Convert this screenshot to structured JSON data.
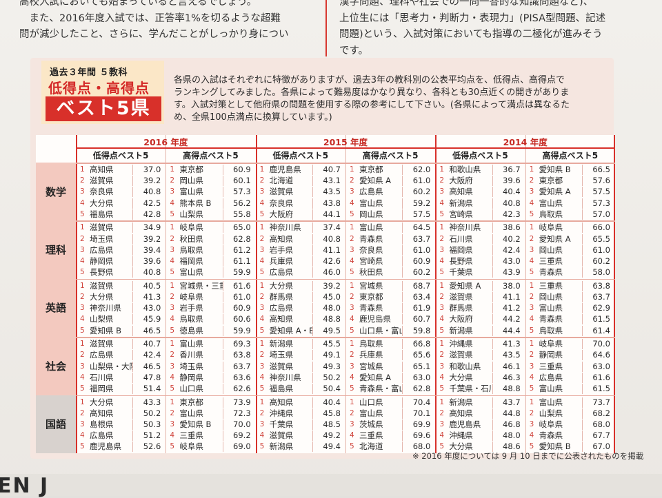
{
  "article": {
    "left": [
      "高校入試においても始まっていると言えるでしょう。",
      "　また、2016年度入試では、正答率1%を切るような超難",
      "問が減少したこと、さらに、学んだことがしっかり身につい"
    ],
    "right": [
      "漢字問題、理科や社会での一問一答的な知識問題など)、",
      "上位生には「思考力・判断力・表現力」(PISA型問題、記述",
      "問題)という、入試対策においても指導の二極化が進みそう",
      "です。"
    ]
  },
  "feature": {
    "subtitle": "過去３年間 ５教科",
    "title_line1": "低得点・高得点",
    "title_line2": "ベスト5県",
    "intro": [
      "各県の入試はそれぞれに特徴がありますが、過去3年の教科別の公表平均点を、低得点、高得点で",
      "ランキングしてみました。各県によって難易度はかなり異なり、各科とも30点近くの開きがありま",
      "す。入試対策として他府県の問題を使用する際の参考にして下さい。(各県によって満点は異なるた",
      "め、全県100点満点に換算しています。)"
    ]
  },
  "table": {
    "years": [
      "2016 年度",
      "2015 年度",
      "2014 年度"
    ],
    "low_label": "低得点ベスト5",
    "high_label": "高得点ベスト5",
    "subjects": [
      {
        "name": "数学",
        "cols": [
          [
            [
              "1",
              "高知県",
              "37.0"
            ],
            [
              "2",
              "滋賀県",
              "39.2"
            ],
            [
              "3",
              "奈良県",
              "40.8"
            ],
            [
              "4",
              "大分県",
              "42.5"
            ],
            [
              "5",
              "福島県",
              "42.8"
            ]
          ],
          [
            [
              "1",
              "東京都",
              "60.9"
            ],
            [
              "2",
              "岡山県",
              "60.1"
            ],
            [
              "3",
              "富山県",
              "57.3"
            ],
            [
              "4",
              "熊本県 B",
              "56.2"
            ],
            [
              "5",
              "山梨県",
              "55.8"
            ]
          ],
          [
            [
              "1",
              "鹿児島県",
              "40.7"
            ],
            [
              "2",
              "北海道",
              "43.1"
            ],
            [
              "3",
              "滋賀県",
              "43.5"
            ],
            [
              "4",
              "奈良県",
              "43.8"
            ],
            [
              "5",
              "大阪府",
              "44.1"
            ]
          ],
          [
            [
              "1",
              "東京都",
              "62.0"
            ],
            [
              "2",
              "愛知県 A",
              "61.0"
            ],
            [
              "3",
              "広島県",
              "60.2"
            ],
            [
              "4",
              "富山県",
              "59.2"
            ],
            [
              "5",
              "岡山県",
              "57.5"
            ]
          ],
          [
            [
              "1",
              "和歌山県",
              "36.7"
            ],
            [
              "2",
              "大阪府",
              "39.6"
            ],
            [
              "3",
              "高知県",
              "40.4"
            ],
            [
              "4",
              "新潟県",
              "40.8"
            ],
            [
              "5",
              "宮崎県",
              "42.3"
            ]
          ],
          [
            [
              "1",
              "愛知県 B",
              "66.5"
            ],
            [
              "2",
              "東京都",
              "57.6"
            ],
            [
              "3",
              "愛知県 A",
              "57.5"
            ],
            [
              "4",
              "富山県",
              "57.3"
            ],
            [
              "5",
              "鳥取県",
              "57.0"
            ]
          ]
        ]
      },
      {
        "name": "理科",
        "cols": [
          [
            [
              "1",
              "滋賀県",
              "34.9"
            ],
            [
              "2",
              "埼玉県",
              "39.2"
            ],
            [
              "3",
              "広島県",
              "39.4"
            ],
            [
              "4",
              "静岡県",
              "39.6"
            ],
            [
              "5",
              "長野県",
              "40.8"
            ]
          ],
          [
            [
              "1",
              "岐阜県",
              "65.0"
            ],
            [
              "2",
              "秋田県",
              "62.8"
            ],
            [
              "3",
              "鳥取県",
              "61.2"
            ],
            [
              "4",
              "福岡県",
              "61.1"
            ],
            [
              "5",
              "富山県",
              "59.9"
            ]
          ],
          [
            [
              "1",
              "神奈川県",
              "37.4"
            ],
            [
              "2",
              "高知県",
              "40.8"
            ],
            [
              "3",
              "岩手県",
              "41.1"
            ],
            [
              "4",
              "兵庫県",
              "42.6"
            ],
            [
              "5",
              "広島県",
              "46.0"
            ]
          ],
          [
            [
              "1",
              "富山県",
              "64.5"
            ],
            [
              "2",
              "青森県",
              "63.7"
            ],
            [
              "3",
              "奈良県",
              "61.0"
            ],
            [
              "4",
              "宮崎県",
              "60.9"
            ],
            [
              "5",
              "秋田県",
              "60.2"
            ]
          ],
          [
            [
              "1",
              "神奈川県",
              "38.6"
            ],
            [
              "2",
              "石川県",
              "40.2"
            ],
            [
              "3",
              "福岡県",
              "42.4"
            ],
            [
              "4",
              "長野県",
              "43.0"
            ],
            [
              "5",
              "千葉県",
              "43.9"
            ]
          ],
          [
            [
              "1",
              "岐阜県",
              "66.0"
            ],
            [
              "2",
              "愛知県 A",
              "65.5"
            ],
            [
              "3",
              "岡山県",
              "61.0"
            ],
            [
              "4",
              "三重県",
              "60.2"
            ],
            [
              "5",
              "青森県",
              "58.0"
            ]
          ]
        ]
      },
      {
        "name": "英語",
        "cols": [
          [
            [
              "1",
              "滋賀県",
              "40.5"
            ],
            [
              "2",
              "大分県",
              "41.3"
            ],
            [
              "3",
              "神奈川県",
              "43.0"
            ],
            [
              "4",
              "山梨県",
              "45.9"
            ],
            [
              "5",
              "愛知県 B",
              "46.5"
            ]
          ],
          [
            [
              "1",
              "宮城県・三重県",
              "61.6"
            ],
            [
              "2",
              "岐阜県",
              "61.0"
            ],
            [
              "3",
              "岩手県",
              "60.9"
            ],
            [
              "4",
              "鳥取県",
              "60.6"
            ],
            [
              "5",
              "徳島県",
              "59.9"
            ]
          ],
          [
            [
              "1",
              "大分県",
              "39.2"
            ],
            [
              "2",
              "群馬県",
              "45.0"
            ],
            [
              "3",
              "広島県",
              "48.0"
            ],
            [
              "4",
              "高知県",
              "48.8"
            ],
            [
              "5",
              "愛知県 A・B",
              "49.5"
            ]
          ],
          [
            [
              "1",
              "宮城県",
              "68.7"
            ],
            [
              "2",
              "東京都",
              "63.4"
            ],
            [
              "3",
              "青森県",
              "61.9"
            ],
            [
              "4",
              "鹿児島県",
              "60.7"
            ],
            [
              "5",
              "山口県・富山県",
              "59.8"
            ]
          ],
          [
            [
              "1",
              "愛知県 A",
              "38.0"
            ],
            [
              "2",
              "滋賀県",
              "41.1"
            ],
            [
              "3",
              "群馬県",
              "41.2"
            ],
            [
              "4",
              "大阪府",
              "44.2"
            ],
            [
              "5",
              "新潟県",
              "44.4"
            ]
          ],
          [
            [
              "1",
              "三重県",
              "63.8"
            ],
            [
              "2",
              "岡山県",
              "63.7"
            ],
            [
              "3",
              "富山県",
              "62.9"
            ],
            [
              "4",
              "青森県",
              "61.5"
            ],
            [
              "5",
              "鳥取県",
              "61.4"
            ]
          ]
        ]
      },
      {
        "name": "社会",
        "cols": [
          [
            [
              "1",
              "滋賀県",
              "40.7"
            ],
            [
              "2",
              "広島県",
              "42.4"
            ],
            [
              "3",
              "山梨県・大阪府",
              "46.5"
            ],
            [
              "4",
              "石川県",
              "47.8"
            ],
            [
              "5",
              "福岡県",
              "51.4"
            ]
          ],
          [
            [
              "1",
              "富山県",
              "69.3"
            ],
            [
              "2",
              "香川県",
              "63.8"
            ],
            [
              "3",
              "埼玉県",
              "63.7"
            ],
            [
              "4",
              "静岡県",
              "63.6"
            ],
            [
              "5",
              "山口県",
              "62.6"
            ]
          ],
          [
            [
              "1",
              "新潟県",
              "45.5"
            ],
            [
              "2",
              "埼玉県",
              "49.1"
            ],
            [
              "3",
              "滋賀県",
              "49.3"
            ],
            [
              "4",
              "神奈川県",
              "50.2"
            ],
            [
              "5",
              "福島県",
              "50.4"
            ]
          ],
          [
            [
              "1",
              "鳥取県",
              "66.8"
            ],
            [
              "2",
              "兵庫県",
              "65.6"
            ],
            [
              "3",
              "宮城県",
              "65.1"
            ],
            [
              "4",
              "愛知県 A",
              "63.0"
            ],
            [
              "5",
              "青森県・富山県",
              "62.8"
            ]
          ],
          [
            [
              "1",
              "沖縄県",
              "41.3"
            ],
            [
              "2",
              "滋賀県",
              "43.5"
            ],
            [
              "3",
              "和歌山県",
              "46.1"
            ],
            [
              "4",
              "大分県",
              "46.3"
            ],
            [
              "5",
              "千葉県・石川県",
              "48.8"
            ]
          ],
          [
            [
              "1",
              "岐阜県",
              "70.0"
            ],
            [
              "2",
              "静岡県",
              "64.6"
            ],
            [
              "3",
              "三重県",
              "63.0"
            ],
            [
              "4",
              "広島県",
              "61.6"
            ],
            [
              "5",
              "富山県",
              "61.5"
            ]
          ]
        ]
      },
      {
        "name": "国語",
        "cols": [
          [
            [
              "1",
              "大分県",
              "43.3"
            ],
            [
              "2",
              "高知県",
              "50.2"
            ],
            [
              "3",
              "島根県",
              "50.3"
            ],
            [
              "4",
              "広島県",
              "51.2"
            ],
            [
              "5",
              "鹿児島県",
              "52.6"
            ]
          ],
          [
            [
              "1",
              "東京都",
              "73.9"
            ],
            [
              "2",
              "富山県",
              "72.3"
            ],
            [
              "3",
              "愛知県 B",
              "70.0"
            ],
            [
              "4",
              "三重県",
              "69.2"
            ],
            [
              "5",
              "岐阜県",
              "69.0"
            ]
          ],
          [
            [
              "1",
              "高知県",
              "40.4"
            ],
            [
              "2",
              "沖縄県",
              "45.8"
            ],
            [
              "3",
              "千葉県",
              "48.5"
            ],
            [
              "4",
              "滋賀県",
              "49.2"
            ],
            [
              "5",
              "新潟県",
              "49.4"
            ]
          ],
          [
            [
              "1",
              "山口県",
              "70.4"
            ],
            [
              "2",
              "富山県",
              "70.1"
            ],
            [
              "3",
              "茨城県",
              "69.9"
            ],
            [
              "4",
              "三重県",
              "69.6"
            ],
            [
              "5",
              "北海道",
              "68.0"
            ]
          ],
          [
            [
              "1",
              "新潟県",
              "43.7"
            ],
            [
              "2",
              "高知県",
              "44.8"
            ],
            [
              "3",
              "鹿児島県",
              "46.8"
            ],
            [
              "4",
              "沖縄県",
              "48.0"
            ],
            [
              "5",
              "大分県",
              "48.6"
            ]
          ],
          [
            [
              "1",
              "富山県",
              "73.7"
            ],
            [
              "2",
              "山梨県",
              "68.2"
            ],
            [
              "3",
              "岐阜県",
              "68.0"
            ],
            [
              "4",
              "青森県",
              "67.7"
            ],
            [
              "5",
              "愛知県 B",
              "67.0"
            ]
          ]
        ]
      }
    ]
  },
  "footnote": "※ 2016 年度については 9 月 10 日までに公表されたものを掲載",
  "bottom_logo": "EN J"
}
